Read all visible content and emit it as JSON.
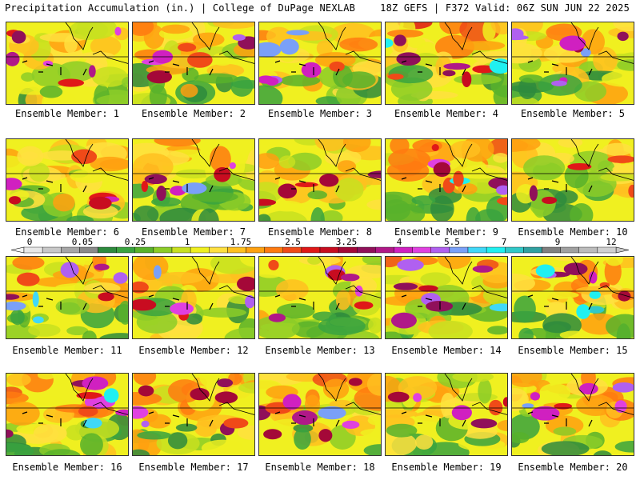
{
  "header": {
    "title": "Precipitation Accumulation (in.) | College of DuPage NEXLAB",
    "run_info": "18Z GEFS | F372 Valid: 06Z SUN JUN 22 2025"
  },
  "panels": [
    {
      "label": "Ensemble Member: 1",
      "intensity": 0.55
    },
    {
      "label": "Ensemble Member: 2",
      "intensity": 0.45
    },
    {
      "label": "Ensemble Member: 3",
      "intensity": 0.6
    },
    {
      "label": "Ensemble Member: 4",
      "intensity": 0.8
    },
    {
      "label": "Ensemble Member: 5",
      "intensity": 0.7
    },
    {
      "label": "Ensemble Member: 6",
      "intensity": 0.35
    },
    {
      "label": "Ensemble Member: 7",
      "intensity": 0.6
    },
    {
      "label": "Ensemble Member: 8",
      "intensity": 0.3
    },
    {
      "label": "Ensemble Member: 9",
      "intensity": 0.8
    },
    {
      "label": "Ensemble Member: 10",
      "intensity": 0.3
    },
    {
      "label": "Ensemble Member: 11",
      "intensity": 0.7
    },
    {
      "label": "Ensemble Member: 12",
      "intensity": 0.55
    },
    {
      "label": "Ensemble Member: 13",
      "intensity": 0.45
    },
    {
      "label": "Ensemble Member: 14",
      "intensity": 0.65
    },
    {
      "label": "Ensemble Member: 15",
      "intensity": 0.9
    },
    {
      "label": "Ensemble Member: 16",
      "intensity": 0.85
    },
    {
      "label": "Ensemble Member: 17",
      "intensity": 0.65
    },
    {
      "label": "Ensemble Member: 18",
      "intensity": 0.75
    },
    {
      "label": "Ensemble Member: 19",
      "intensity": 0.4
    },
    {
      "label": "Ensemble Member: 20",
      "intensity": 0.55
    }
  ],
  "colorbar": {
    "tick_labels": [
      "0",
      "0.05",
      "0.25",
      "1",
      "1.75",
      "2.5",
      "3.25",
      "4",
      "5.5",
      "7",
      "9",
      "12"
    ],
    "colors": [
      "#e8e8e8",
      "#c8c8c8",
      "#a6a6a6",
      "#8a8a8a",
      "#2e8b3d",
      "#3aa33f",
      "#58b22c",
      "#8ccc28",
      "#c8e020",
      "#f0f020",
      "#ffe040",
      "#ffc020",
      "#ffa010",
      "#ff7a10",
      "#f04a18",
      "#e01818",
      "#c80c20",
      "#a40838",
      "#90105a",
      "#b01888",
      "#d020c0",
      "#e040e0",
      "#b060f0",
      "#7aa0f8",
      "#40d8f8",
      "#20f0f0",
      "#30c8c8",
      "#30a0a0",
      "#808080",
      "#a0a0a0",
      "#bcbcbc",
      "#d0d0d0"
    ]
  }
}
